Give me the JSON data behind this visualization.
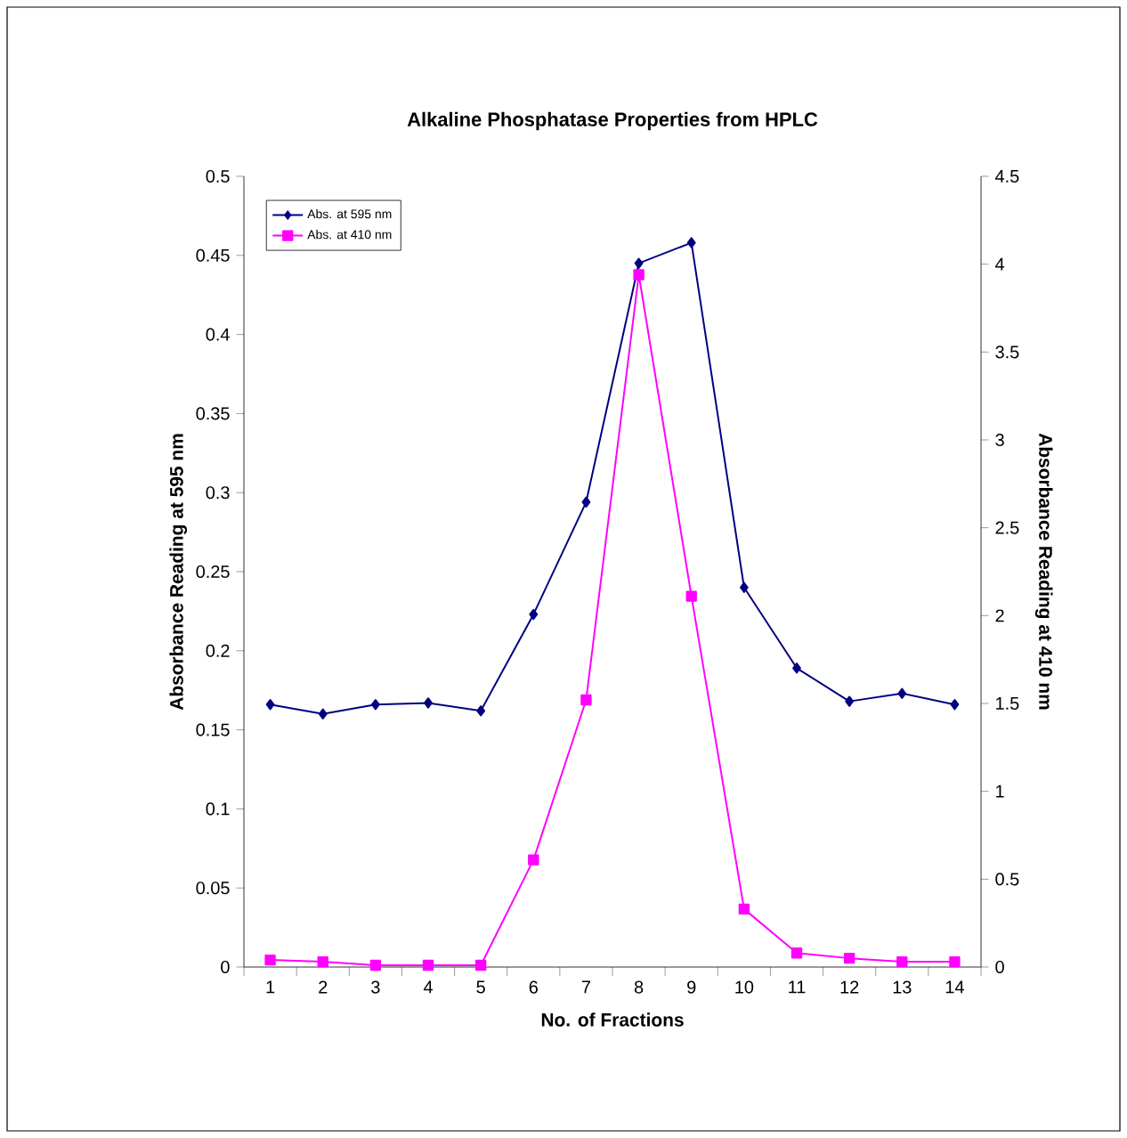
{
  "chart_data": {
    "type": "line",
    "title": "Alkaline Phosphatase Properties from HPLC",
    "xlabel": "No. of Fractions",
    "ylabel": "Absorbance Reading at 595 nm",
    "y2label": "Absorbance Reading at 410 nm",
    "categories": [
      "1",
      "2",
      "3",
      "4",
      "5",
      "6",
      "7",
      "8",
      "9",
      "10",
      "11",
      "12",
      "13",
      "14"
    ],
    "series": [
      {
        "name": "Abs. at 595 nm",
        "color": "#000080",
        "marker": "diamond",
        "values": [
          0.166,
          0.16,
          0.166,
          0.167,
          0.162,
          0.223,
          0.294,
          0.445,
          0.458,
          0.24,
          0.189,
          0.168,
          0.173,
          0.166
        ]
      },
      {
        "name": "Abs. at 410 nm",
        "color": "#ff00ff",
        "marker": "square",
        "axis": "y2",
        "values": [
          0.04,
          0.03,
          0.01,
          0.01,
          0.01,
          0.61,
          1.52,
          3.94,
          2.11,
          0.33,
          0.08,
          0.05,
          0.03,
          0.03
        ]
      }
    ],
    "ylim": [
      0,
      0.5
    ],
    "yticks": [
      0,
      0.05,
      0.1,
      0.15,
      0.2,
      0.25,
      0.3,
      0.35,
      0.4,
      0.45,
      0.5
    ],
    "y2lim": [
      0,
      4.5
    ],
    "y2ticks": [
      0,
      0.5,
      1,
      1.5,
      2,
      2.5,
      3,
      3.5,
      4,
      4.5
    ],
    "legend": "top left",
    "grid": false,
    "line_style": "solid"
  }
}
